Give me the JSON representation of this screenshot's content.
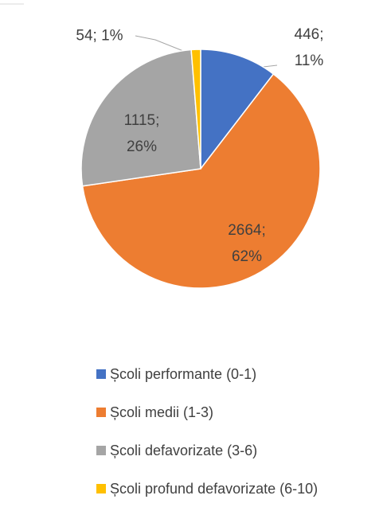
{
  "chart_data": {
    "type": "pie",
    "categories": [
      "Școli performante (0-1)",
      "Școli medii (1-3)",
      "Școli defavorizate (3-6)",
      "Școli profund defavorizate (6-10)"
    ],
    "values": [
      446,
      2664,
      1115,
      54
    ],
    "value_labels": [
      "446; 11%",
      "2664; 62%",
      "1115; 26%",
      "54; 1%"
    ],
    "colors": [
      "#4472c4",
      "#ed7d31",
      "#a5a5a5",
      "#ffc000"
    ],
    "legend": "bottom"
  }
}
